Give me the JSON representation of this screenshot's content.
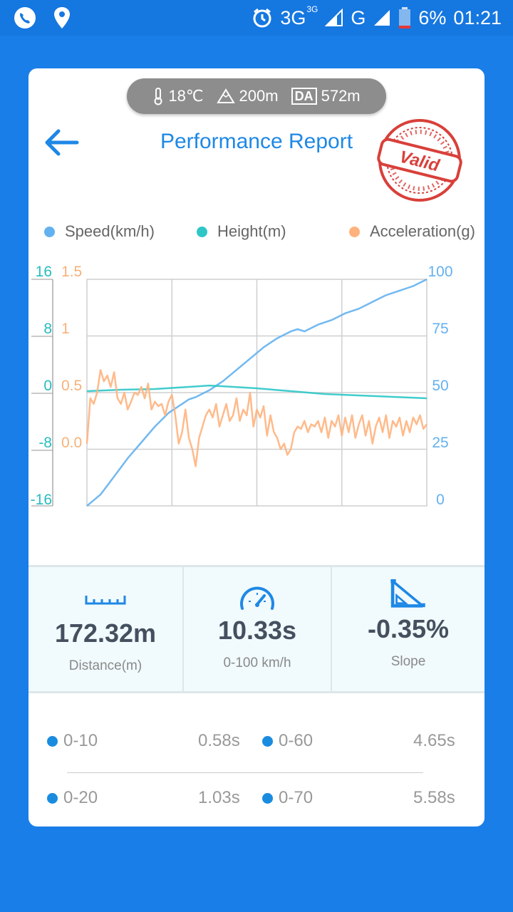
{
  "status_bar": {
    "network": "3G",
    "network_super": "3G",
    "network2": "G",
    "battery": "6%",
    "time": "01:21"
  },
  "conditions": {
    "temperature": "18℃",
    "altitude": "200m",
    "da_label": "DA",
    "density_altitude": "572m"
  },
  "header": {
    "title": "Performance Report",
    "stamp": "Valid"
  },
  "legend": [
    {
      "label": "Speed(km/h)",
      "color": "#63b1f0"
    },
    {
      "label": "Height(m)",
      "color": "#2ec6c6"
    },
    {
      "label": "Acceleration(g)",
      "color": "#ffb27d"
    }
  ],
  "chart_data": {
    "type": "line",
    "height_axis": {
      "ticks": [
        "16",
        "8",
        "0",
        "-8",
        "-16"
      ],
      "range": [
        -16,
        16
      ],
      "color": "#27bcc0"
    },
    "accel_axis": {
      "ticks": [
        "1.5",
        "1",
        "0.5",
        "0.0"
      ],
      "range": [
        -0.5,
        1.5
      ],
      "color": "#f5b27a"
    },
    "speed_axis": {
      "ticks": [
        "100",
        "75",
        "50",
        "25",
        "0"
      ],
      "range": [
        0,
        100
      ],
      "color": "#63b1f0"
    },
    "grid": true,
    "series": [
      {
        "name": "Speed(km/h)",
        "axis": "speed",
        "color": "#63b1f0",
        "x": [
          0,
          0.04,
          0.08,
          0.12,
          0.16,
          0.2,
          0.24,
          0.28,
          0.3,
          0.32,
          0.36,
          0.4,
          0.44,
          0.48,
          0.52,
          0.56,
          0.6,
          0.62,
          0.64,
          0.68,
          0.72,
          0.76,
          0.8,
          0.84,
          0.88,
          0.92,
          0.96,
          1.0
        ],
        "values": [
          0,
          5,
          13,
          21,
          28,
          35,
          41,
          45,
          47,
          48,
          51,
          55,
          60,
          65,
          70,
          74,
          77,
          78,
          77,
          80,
          82,
          85,
          87,
          90,
          93,
          95,
          97,
          100
        ]
      },
      {
        "name": "Height(m)",
        "axis": "height",
        "color": "#2ec6c6",
        "x": [
          0,
          0.1,
          0.2,
          0.3,
          0.36,
          0.4,
          0.5,
          0.6,
          0.7,
          0.8,
          0.9,
          1.0
        ],
        "values": [
          0.2,
          0.4,
          0.5,
          0.8,
          1.0,
          0.9,
          0.6,
          0.2,
          -0.2,
          -0.4,
          -0.6,
          -0.8
        ]
      },
      {
        "name": "Acceleration(g)",
        "axis": "accel",
        "color": "#ffb27d",
        "x": [
          0,
          0.01,
          0.02,
          0.03,
          0.04,
          0.05,
          0.06,
          0.07,
          0.08,
          0.09,
          0.1,
          0.11,
          0.12,
          0.13,
          0.14,
          0.15,
          0.16,
          0.17,
          0.18,
          0.19,
          0.2,
          0.21,
          0.22,
          0.23,
          0.24,
          0.25,
          0.26,
          0.27,
          0.28,
          0.29,
          0.3,
          0.31,
          0.32,
          0.33,
          0.34,
          0.35,
          0.36,
          0.37,
          0.38,
          0.39,
          0.4,
          0.41,
          0.42,
          0.43,
          0.44,
          0.45,
          0.46,
          0.47,
          0.48,
          0.49,
          0.5,
          0.51,
          0.52,
          0.53,
          0.54,
          0.55,
          0.56,
          0.57,
          0.58,
          0.59,
          0.6,
          0.61,
          0.62,
          0.63,
          0.64,
          0.65,
          0.66,
          0.67,
          0.68,
          0.69,
          0.7,
          0.71,
          0.72,
          0.73,
          0.74,
          0.75,
          0.76,
          0.77,
          0.78,
          0.79,
          0.8,
          0.81,
          0.82,
          0.83,
          0.84,
          0.85,
          0.86,
          0.87,
          0.88,
          0.89,
          0.9,
          0.91,
          0.92,
          0.93,
          0.94,
          0.95,
          0.96,
          0.97,
          0.98,
          0.99,
          1.0
        ],
        "values": [
          0.05,
          0.45,
          0.4,
          0.5,
          0.7,
          0.6,
          0.65,
          0.55,
          0.68,
          0.45,
          0.4,
          0.5,
          0.35,
          0.42,
          0.5,
          0.48,
          0.55,
          0.45,
          0.58,
          0.35,
          0.42,
          0.38,
          0.4,
          0.3,
          0.42,
          0.48,
          0.3,
          0.05,
          0.15,
          0.35,
          0.1,
          0.0,
          -0.15,
          0.1,
          0.2,
          0.3,
          0.35,
          0.28,
          0.4,
          0.2,
          0.3,
          0.4,
          0.25,
          0.3,
          0.45,
          0.25,
          0.35,
          0.3,
          0.5,
          0.2,
          0.35,
          0.28,
          0.38,
          0.12,
          0.3,
          0.15,
          0.1,
          0.0,
          0.05,
          -0.05,
          0.0,
          0.15,
          0.2,
          0.18,
          0.25,
          0.15,
          0.22,
          0.2,
          0.25,
          0.15,
          0.28,
          0.1,
          0.25,
          0.2,
          0.3,
          0.12,
          0.28,
          0.15,
          0.3,
          0.1,
          0.22,
          0.3,
          0.12,
          0.25,
          0.05,
          0.2,
          0.28,
          0.15,
          0.3,
          0.1,
          0.25,
          0.2,
          0.28,
          0.12,
          0.25,
          0.15,
          0.28,
          0.22,
          0.3,
          0.18,
          0.22
        ]
      }
    ]
  },
  "stats": [
    {
      "icon": "ruler-icon",
      "value": "172.32m",
      "label": "Distance(m)"
    },
    {
      "icon": "speedometer-icon",
      "value": "10.33s",
      "label": "0-100 km/h"
    },
    {
      "icon": "slope-icon",
      "value": "-0.35%",
      "label": "Slope"
    }
  ],
  "intervals": [
    [
      {
        "range": "0-10",
        "time": "0.58s"
      },
      {
        "range": "0-60",
        "time": "4.65s"
      }
    ],
    [
      {
        "range": "0-20",
        "time": "1.03s"
      },
      {
        "range": "0-70",
        "time": "5.58s"
      }
    ]
  ],
  "colors": {
    "background": "#1a7ee8",
    "accent": "#1e88e5",
    "stamp": "#d8403a",
    "stat_bg": "#f1fafc"
  }
}
